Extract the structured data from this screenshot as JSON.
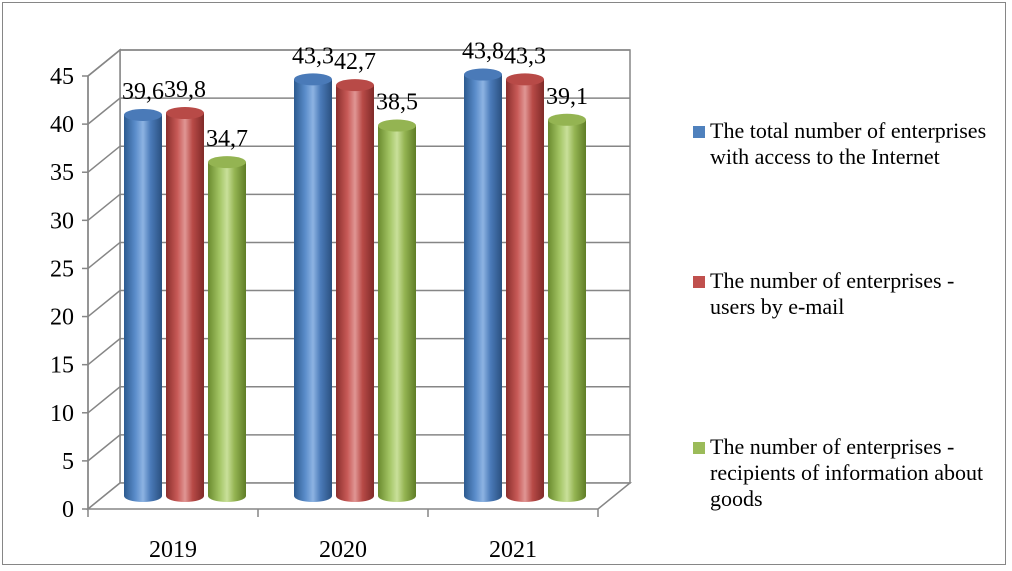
{
  "chart_data": {
    "type": "bar",
    "categories": [
      "2019",
      "2020",
      "2021"
    ],
    "series": [
      {
        "name": "The total number of enterprises with access to the Internet",
        "values": [
          39.6,
          43.3,
          43.8
        ],
        "labels": [
          "39,6",
          "43,3",
          "43,8"
        ],
        "color": "#4f81bd"
      },
      {
        "name": "The number of enterprises - users by e-mail",
        "values": [
          39.8,
          42.7,
          43.3
        ],
        "labels": [
          "39,8",
          "42,7",
          "43,3"
        ],
        "color": "#c0504d"
      },
      {
        "name": "The number of enterprises - recipients of information about goods",
        "values": [
          34.7,
          38.5,
          39.1
        ],
        "labels": [
          "34,7",
          "38,5",
          "39,1"
        ],
        "color": "#9bbb59"
      }
    ],
    "ylim": [
      0,
      45
    ],
    "yticks": [
      0,
      5,
      10,
      15,
      20,
      25,
      30,
      35,
      40,
      45
    ],
    "grid": true,
    "legend_position": "right",
    "style": "3d-cylinder"
  }
}
